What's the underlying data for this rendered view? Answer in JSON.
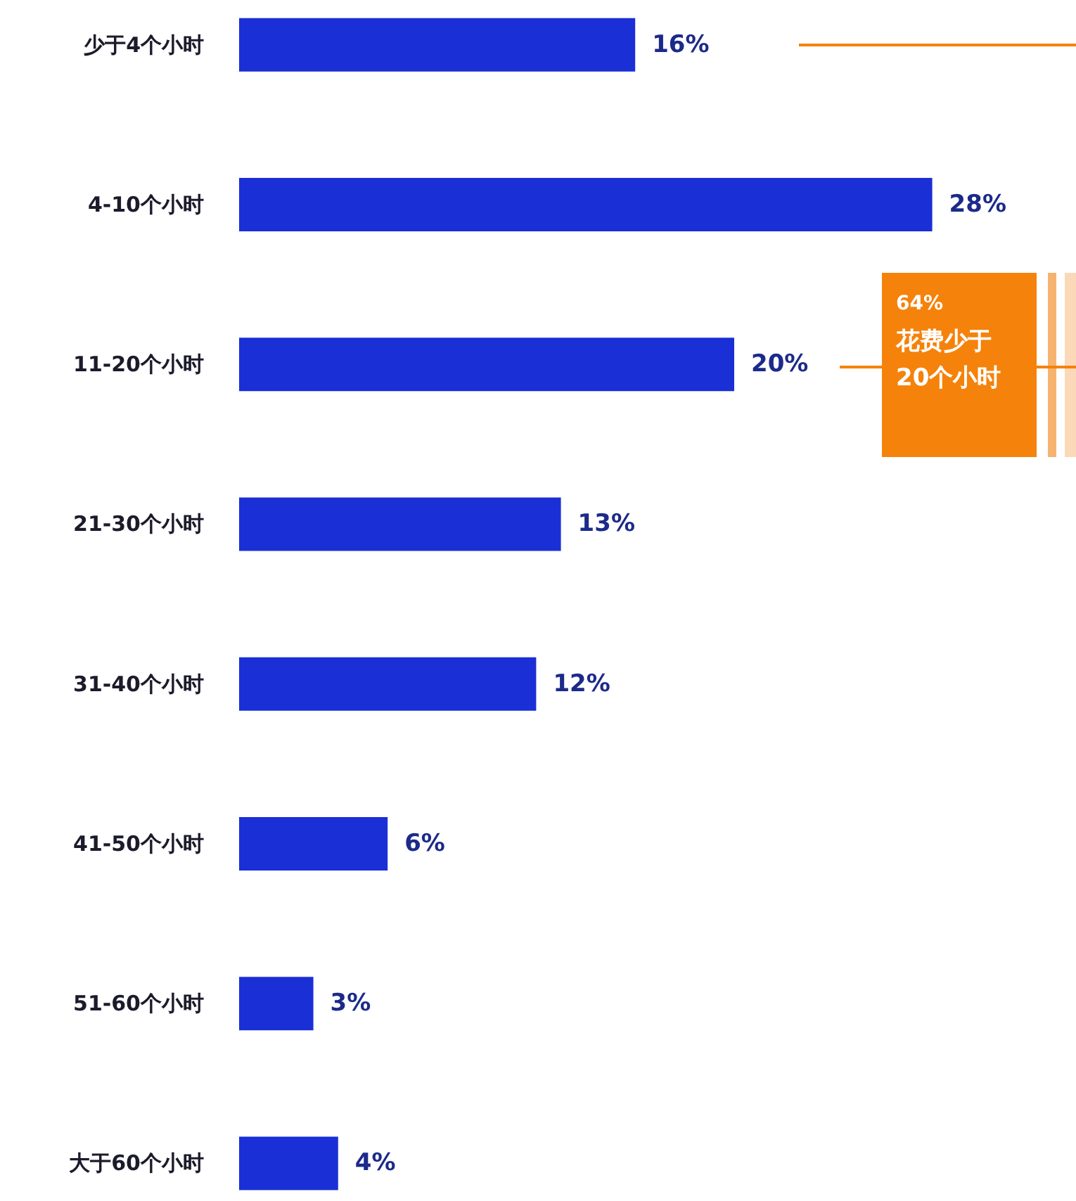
{
  "chart_data": {
    "type": "bar",
    "orientation": "horizontal",
    "categories": [
      "少于4个小时",
      "4-10个小时",
      "11-20个小时",
      "21-30个小时",
      "31-40个小时",
      "41-50个小时",
      "51-60个小时",
      "大于60个小时"
    ],
    "values": [
      16,
      28,
      20,
      13,
      12,
      6,
      3,
      4
    ],
    "value_labels": [
      "16%",
      "28%",
      "20%",
      "13%",
      "12%",
      "6%",
      "3%",
      "4%"
    ],
    "color": "#1a2fd6",
    "annotations": [
      "64%",
      "花费少于20个小时"
    ]
  }
}
